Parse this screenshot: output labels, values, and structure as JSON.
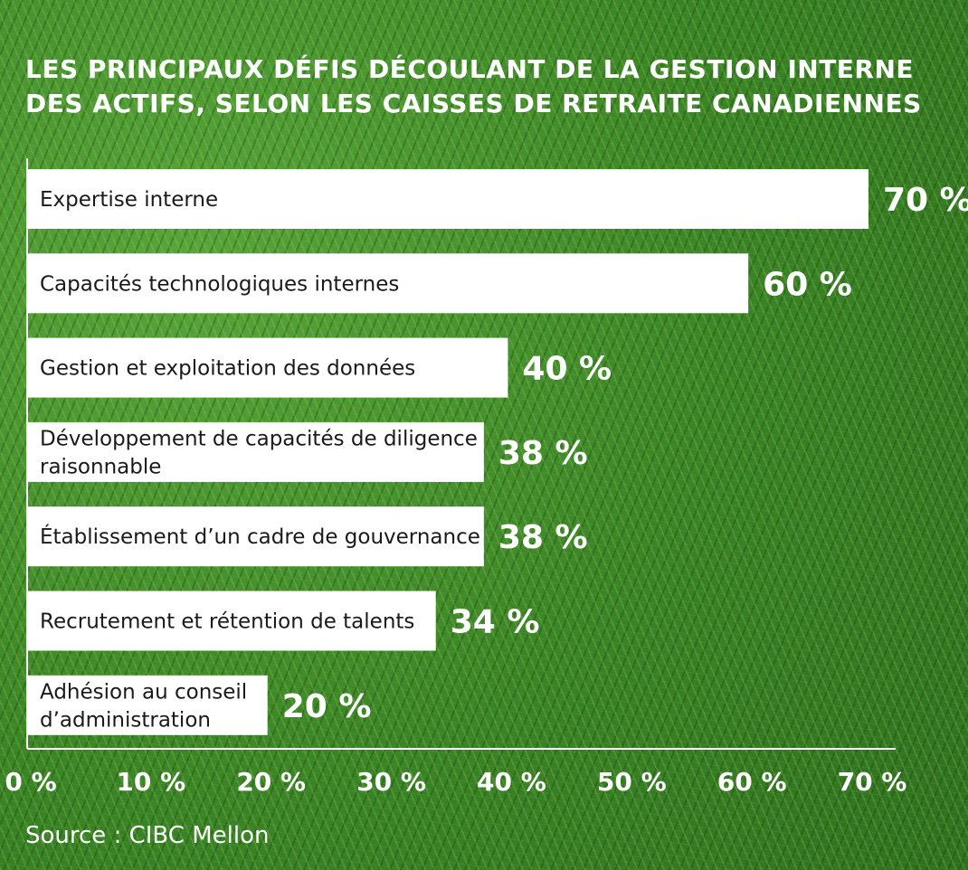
{
  "title_lines": [
    "LES PRINCIPAUX DÉFIS DÉCOULANT DE LA GESTION INTERNE",
    "DES ACTIFS, SELON LES CAISSES DE RETRAITE CANADIENNES"
  ],
  "source": "Source : CIBC Mellon",
  "colors": {
    "bar": "#ffffff",
    "text_on_bar": "#1a1a1a",
    "value_label": "#ffffff",
    "axis": "#ffffff"
  },
  "chart_data": {
    "type": "bar",
    "orientation": "horizontal",
    "categories": [
      [
        "Expertise interne"
      ],
      [
        "Capacités technologiques internes"
      ],
      [
        "Gestion et exploitation des données"
      ],
      [
        "Développement de capacités de diligence",
        "raisonnable"
      ],
      [
        "Établissement d’un cadre de gouvernance"
      ],
      [
        "Recrutement et rétention de talents"
      ],
      [
        "Adhésion au conseil",
        "d’administration"
      ]
    ],
    "values": [
      70,
      60,
      40,
      38,
      38,
      34,
      20
    ],
    "value_labels": [
      "70 %",
      "60 %",
      "40 %",
      "38 %",
      "38 %",
      "34 %",
      "20 %"
    ],
    "xlim": [
      0,
      70
    ],
    "x_ticks": [
      0,
      10,
      20,
      30,
      40,
      50,
      60,
      70
    ],
    "x_tick_labels": [
      "0 %",
      "10 %",
      "20 %",
      "30 %",
      "40 %",
      "50 %",
      "60 %",
      "70 %"
    ],
    "grid": false,
    "legend": "none"
  }
}
